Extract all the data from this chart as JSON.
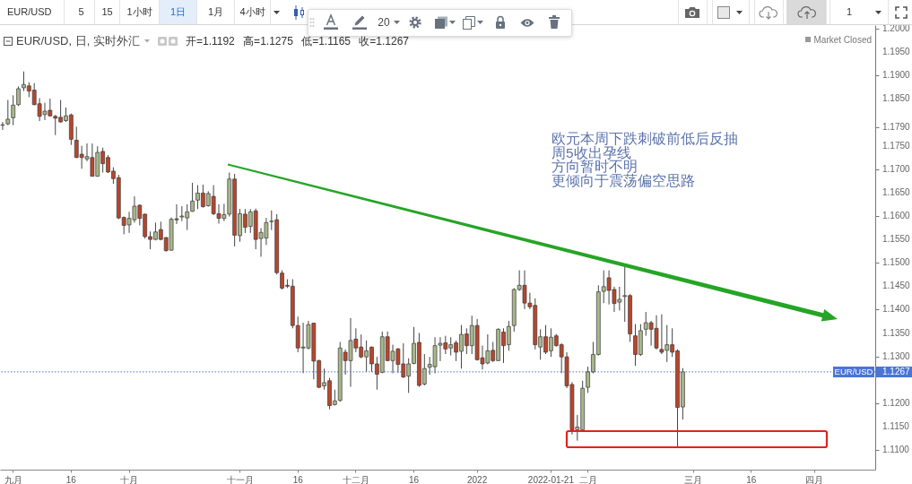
{
  "chart_data": {
    "type": "candlestick",
    "title": "EUR/USD, 日, 实时外汇",
    "subtitle": "开=1.1192 高=1.1275 低=1.1165 收=1.1267",
    "categories": [
      null,
      null,
      "九月",
      null,
      null,
      null,
      null,
      null,
      null,
      null,
      null,
      null,
      null,
      "16",
      null,
      null,
      null,
      null,
      null,
      null,
      null,
      null,
      null,
      null,
      "十月",
      null,
      null,
      null,
      null,
      null,
      null,
      null,
      null,
      null,
      null,
      null,
      null,
      null,
      null,
      null,
      null,
      null,
      null,
      null,
      null,
      "十一月",
      null,
      null,
      null,
      null,
      null,
      null,
      null,
      null,
      null,
      null,
      "16",
      null,
      null,
      null,
      null,
      null,
      null,
      null,
      null,
      null,
      null,
      "十二月",
      null,
      null,
      null,
      null,
      null,
      null,
      null,
      null,
      null,
      null,
      "16",
      null,
      null,
      null,
      null,
      null,
      null,
      null,
      null,
      null,
      null,
      null,
      "2022",
      null,
      null,
      null,
      null,
      null,
      null,
      null,
      null,
      null,
      null,
      null,
      null,
      null,
      "2022-01-21",
      null,
      null,
      null,
      null,
      null,
      null,
      "二月",
      null,
      null,
      null,
      null,
      null,
      null,
      null,
      null,
      null,
      null,
      null,
      null,
      null,
      null,
      null,
      null,
      null,
      null,
      null,
      "三月",
      null,
      null,
      null,
      null,
      null,
      null,
      null,
      null,
      null,
      null,
      "16",
      null,
      null,
      null,
      null,
      null,
      null,
      null,
      null,
      null,
      null,
      null,
      "四月",
      null,
      null,
      null,
      null,
      null,
      null,
      null,
      null,
      null,
      null,
      null
    ],
    "ohlc": [
      [
        1.1794,
        1.1801,
        1.1784,
        1.1795
      ],
      [
        1.1797,
        1.1848,
        1.1794,
        1.1807
      ],
      [
        1.181,
        1.1858,
        1.1794,
        1.1837
      ],
      [
        1.1838,
        1.1877,
        1.1835,
        1.1872
      ],
      [
        1.1874,
        1.1909,
        1.1867,
        1.1881
      ],
      [
        1.1878,
        1.1886,
        1.1854,
        1.1867
      ],
      [
        1.1869,
        1.1884,
        1.1837,
        1.1838
      ],
      [
        1.184,
        1.1852,
        1.1803,
        1.1813
      ],
      [
        1.1817,
        1.1842,
        1.1805,
        1.1824
      ],
      [
        1.1826,
        1.1851,
        1.1813,
        1.1814
      ],
      [
        1.1813,
        1.1816,
        1.1773,
        1.1809
      ],
      [
        1.1811,
        1.1848,
        1.18,
        1.1801
      ],
      [
        1.1804,
        1.1832,
        1.1801,
        1.1814
      ],
      [
        1.1816,
        1.1819,
        1.1752,
        1.1764
      ],
      [
        1.1762,
        1.1791,
        1.1724,
        1.1725
      ],
      [
        1.1732,
        1.175,
        1.1701,
        1.1725
      ],
      [
        1.1722,
        1.1755,
        1.1717,
        1.1727
      ],
      [
        1.1725,
        1.1755,
        1.1684,
        1.1685
      ],
      [
        1.1685,
        1.1749,
        1.1684,
        1.1736
      ],
      [
        1.1738,
        1.1746,
        1.1693,
        1.1712
      ],
      [
        1.1725,
        1.173,
        1.1692,
        1.1694
      ],
      [
        1.1696,
        1.1704,
        1.1669,
        1.168
      ],
      [
        1.1682,
        1.1688,
        1.1593,
        1.1596
      ],
      [
        1.1597,
        1.1599,
        1.1561,
        1.158
      ],
      [
        1.1581,
        1.1609,
        1.1564,
        1.1595
      ],
      [
        1.1592,
        1.1642,
        1.1586,
        1.1621
      ],
      [
        1.1623,
        1.1625,
        1.158,
        1.1595
      ],
      [
        1.1604,
        1.1605,
        1.1552,
        1.1556
      ],
      [
        1.1556,
        1.1567,
        1.1529,
        1.155
      ],
      [
        1.155,
        1.1586,
        1.1548,
        1.1566
      ],
      [
        1.1571,
        1.1588,
        1.1548,
        1.155
      ],
      [
        1.1554,
        1.1555,
        1.1524,
        1.1526
      ],
      [
        1.1527,
        1.1597,
        1.1526,
        1.1593
      ],
      [
        1.1594,
        1.1625,
        1.1583,
        1.1592
      ],
      [
        1.1598,
        1.1621,
        1.1589,
        1.16
      ],
      [
        1.1596,
        1.1625,
        1.157,
        1.1609
      ],
      [
        1.161,
        1.1671,
        1.1609,
        1.1632
      ],
      [
        1.1634,
        1.1666,
        1.1615,
        1.1649
      ],
      [
        1.1649,
        1.1667,
        1.1618,
        1.162
      ],
      [
        1.1622,
        1.1653,
        1.162,
        1.1648
      ],
      [
        1.1642,
        1.1666,
        1.1602,
        1.1605
      ],
      [
        1.1605,
        1.1625,
        1.1584,
        1.1595
      ],
      [
        1.1595,
        1.1626,
        1.1589,
        1.1603
      ],
      [
        1.1604,
        1.1693,
        1.1599,
        1.1679
      ],
      [
        1.1679,
        1.169,
        1.1535,
        1.1559
      ],
      [
        1.1558,
        1.1615,
        1.1545,
        1.1605
      ],
      [
        1.1604,
        1.1615,
        1.1564,
        1.1576
      ],
      [
        1.1578,
        1.1615,
        1.1564,
        1.1609
      ],
      [
        1.1611,
        1.1616,
        1.1529,
        1.155
      ],
      [
        1.1552,
        1.1574,
        1.1513,
        1.1565
      ],
      [
        1.1553,
        1.1596,
        1.1538,
        1.1586
      ],
      [
        1.1588,
        1.1612,
        1.157,
        1.1589
      ],
      [
        1.1592,
        1.1604,
        1.1475,
        1.1479
      ],
      [
        1.1478,
        1.1484,
        1.1443,
        1.1446
      ],
      [
        1.1452,
        1.1465,
        1.1446,
        1.145
      ],
      [
        1.145,
        1.1465,
        1.136,
        1.1366
      ],
      [
        1.1366,
        1.1385,
        1.1309,
        1.1318
      ],
      [
        1.1318,
        1.1372,
        1.1264,
        1.132
      ],
      [
        1.1318,
        1.1376,
        1.1315,
        1.1368
      ],
      [
        1.1371,
        1.1372,
        1.1251,
        1.129
      ],
      [
        1.1291,
        1.1293,
        1.1232,
        1.1234
      ],
      [
        1.1237,
        1.1274,
        1.1229,
        1.1244
      ],
      [
        1.1248,
        1.1254,
        1.1187,
        1.1195
      ],
      [
        1.1197,
        1.1229,
        1.1195,
        1.1205
      ],
      [
        1.1206,
        1.1331,
        1.1203,
        1.1318
      ],
      [
        1.1309,
        1.1315,
        1.1261,
        1.1291
      ],
      [
        1.1291,
        1.1382,
        1.1235,
        1.1334
      ],
      [
        1.1337,
        1.136,
        1.1309,
        1.1318
      ],
      [
        1.132,
        1.1347,
        1.1296,
        1.1299
      ],
      [
        1.1299,
        1.1334,
        1.1267,
        1.1312
      ],
      [
        1.132,
        1.1321,
        1.1267,
        1.1284
      ],
      [
        1.1284,
        1.1299,
        1.1229,
        1.1262
      ],
      [
        1.1266,
        1.1353,
        1.1264,
        1.1342
      ],
      [
        1.1342,
        1.1353,
        1.129,
        1.1291
      ],
      [
        1.1291,
        1.1325,
        1.1264,
        1.1311
      ],
      [
        1.1316,
        1.1318,
        1.1265,
        1.1283
      ],
      [
        1.1284,
        1.1328,
        1.1254,
        1.1256
      ],
      [
        1.1258,
        1.1296,
        1.1222,
        1.1284
      ],
      [
        1.1285,
        1.1363,
        1.1283,
        1.1328
      ],
      [
        1.133,
        1.135,
        1.1235,
        1.1238
      ],
      [
        1.1241,
        1.1305,
        1.1238,
        1.1274
      ],
      [
        1.1277,
        1.1299,
        1.1261,
        1.1283
      ],
      [
        1.1278,
        1.1341,
        1.1264,
        1.1323
      ],
      [
        1.1324,
        1.1341,
        1.129,
        1.1328
      ],
      [
        1.1329,
        1.1344,
        1.1305,
        1.1316
      ],
      [
        1.1318,
        1.1341,
        1.1302,
        1.1325
      ],
      [
        1.1329,
        1.1334,
        1.129,
        1.1309
      ],
      [
        1.1311,
        1.1367,
        1.1274,
        1.1347
      ],
      [
        1.1348,
        1.136,
        1.1305,
        1.1323
      ],
      [
        1.1323,
        1.1387,
        1.1305,
        1.1366
      ],
      [
        1.1366,
        1.138,
        1.1291,
        1.1293
      ],
      [
        1.1297,
        1.1323,
        1.1272,
        1.1284
      ],
      [
        1.1286,
        1.1347,
        1.1283,
        1.1312
      ],
      [
        1.1313,
        1.1331,
        1.1288,
        1.1291
      ],
      [
        1.1291,
        1.136,
        1.129,
        1.1358
      ],
      [
        1.1352,
        1.136,
        1.1286,
        1.1323
      ],
      [
        1.1325,
        1.1376,
        1.1312,
        1.1364
      ],
      [
        1.1366,
        1.1446,
        1.1353,
        1.1443
      ],
      [
        1.1443,
        1.1484,
        1.144,
        1.1452
      ],
      [
        1.1452,
        1.1484,
        1.1401,
        1.1414
      ],
      [
        1.1414,
        1.1436,
        1.1401,
        1.1406
      ],
      [
        1.1409,
        1.1424,
        1.1315,
        1.1325
      ],
      [
        1.132,
        1.1358,
        1.1293,
        1.1342
      ],
      [
        1.1342,
        1.1367,
        1.1305,
        1.1309
      ],
      [
        1.1312,
        1.136,
        1.1299,
        1.1341
      ],
      [
        1.1344,
        1.1348,
        1.1321,
        1.1323
      ],
      [
        1.1325,
        1.1328,
        1.1264,
        1.1299
      ],
      [
        1.1299,
        1.1309,
        1.1232,
        1.1237
      ],
      [
        1.124,
        1.1245,
        1.1133,
        1.1143
      ],
      [
        1.1143,
        1.1175,
        1.112,
        1.1149
      ],
      [
        1.1143,
        1.1248,
        1.114,
        1.1232
      ],
      [
        1.1234,
        1.1278,
        1.1222,
        1.1267
      ],
      [
        1.1267,
        1.1331,
        1.1264,
        1.1304
      ],
      [
        1.1304,
        1.1452,
        1.1302,
        1.1438
      ],
      [
        1.1439,
        1.1484,
        1.1414,
        1.1449
      ],
      [
        1.1468,
        1.1484,
        1.1411,
        1.1441
      ],
      [
        1.1443,
        1.1449,
        1.1395,
        1.1413
      ],
      [
        1.1416,
        1.1449,
        1.1398,
        1.1422
      ],
      [
        1.1428,
        1.1491,
        1.1374,
        1.143
      ],
      [
        1.143,
        1.1433,
        1.1331,
        1.1348
      ],
      [
        1.1344,
        1.1369,
        1.128,
        1.1304
      ],
      [
        1.1304,
        1.1369,
        1.1301,
        1.1355
      ],
      [
        1.1358,
        1.1395,
        1.1344,
        1.1372
      ],
      [
        1.1372,
        1.1376,
        1.1323,
        1.1358
      ],
      [
        1.136,
        1.1388,
        1.1315,
        1.1318
      ],
      [
        1.1315,
        1.139,
        1.1305,
        1.1309
      ],
      [
        1.1313,
        1.1367,
        1.1288,
        1.1325
      ],
      [
        1.1325,
        1.136,
        1.1299,
        1.1309
      ],
      [
        1.1312,
        1.1315,
        1.1107,
        1.1191
      ],
      [
        1.1192,
        1.1275,
        1.1165,
        1.1267
      ],
      null,
      null,
      null,
      null,
      null,
      null,
      null,
      null,
      null,
      null,
      null,
      null,
      null,
      null,
      null,
      null,
      null,
      null,
      null,
      null,
      null,
      null,
      null,
      null,
      null,
      null,
      null,
      null,
      null,
      null,
      null,
      null,
      null,
      null,
      null,
      null
    ],
    "colors": [
      "#a9b78c",
      "#a9b78c",
      "#a9b78c",
      "#a9b78c",
      "#a9b78c",
      "#b8462c",
      "#b8462c",
      "#b8462c",
      "#a9b78c",
      "#b8462c",
      "#b8462c",
      "#b8462c",
      "#a9b78c",
      "#b8462c",
      "#b8462c",
      "#b8462c",
      "#a9b78c",
      "#b8462c",
      "#a9b78c",
      "#b8462c",
      "#b8462c",
      "#b8462c",
      "#b8462c",
      "#b8462c",
      "#a9b78c",
      "#a9b78c",
      "#b8462c",
      "#b8462c",
      "#b8462c",
      "#a9b78c",
      "#b8462c",
      "#b8462c",
      "#a9b78c",
      "#b8462c",
      "#a9b78c",
      "#a9b78c",
      "#a9b78c",
      "#a9b78c",
      "#b8462c",
      "#a9b78c",
      "#b8462c",
      "#b8462c",
      "#a9b78c",
      "#a9b78c",
      "#b8462c",
      "#a9b78c",
      "#b8462c",
      "#a9b78c",
      "#b8462c",
      "#a9b78c",
      "#a9b78c",
      "#a9b78c",
      "#b8462c",
      "#b8462c",
      "#b8462c",
      "#b8462c",
      "#b8462c",
      "#a9b78c",
      "#a9b78c",
      "#b8462c",
      "#b8462c",
      "#a9b78c",
      "#b8462c",
      "#a9b78c",
      "#a9b78c",
      "#b8462c",
      "#a9b78c",
      "#b8462c",
      "#b8462c",
      "#a9b78c",
      "#b8462c",
      "#b8462c",
      "#a9b78c",
      "#b8462c",
      "#a9b78c",
      "#b8462c",
      "#b8462c",
      "#a9b78c",
      "#a9b78c",
      "#b8462c",
      "#a9b78c",
      "#a9b78c",
      "#a9b78c",
      "#a9b78c",
      "#b8462c",
      "#a9b78c",
      "#b8462c",
      "#a9b78c",
      "#b8462c",
      "#a9b78c",
      "#b8462c",
      "#b8462c",
      "#a9b78c",
      "#b8462c",
      "#a9b78c",
      "#b8462c",
      "#a9b78c",
      "#a9b78c",
      "#a9b78c",
      "#b8462c",
      "#b8462c",
      "#b8462c",
      "#a9b78c",
      "#b8462c",
      "#a9b78c",
      "#b8462c",
      "#b8462c",
      "#b8462c",
      "#b8462c",
      "#a9b78c",
      "#a9b78c",
      "#a9b78c",
      "#a9b78c",
      "#a9b78c",
      "#a9b78c",
      "#b8462c",
      "#b8462c",
      "#a9b78c",
      "#a9b78c",
      "#b8462c",
      "#b8462c",
      "#a9b78c",
      "#a9b78c",
      "#b8462c",
      "#b8462c",
      "#b8462c",
      "#a9b78c",
      "#b8462c",
      "#b8462c",
      "#a9b78c",
      null,
      null,
      null,
      null,
      null,
      null,
      null,
      null,
      null,
      null,
      null,
      null,
      null,
      null,
      null,
      null,
      null,
      null,
      null,
      null,
      null,
      null,
      null,
      null,
      null,
      null,
      null,
      null,
      null,
      null,
      null,
      null,
      null,
      null,
      null,
      null
    ],
    "ylim": [
      1.1058,
      1.2008
    ],
    "yticks": [
      {
        "value": 1.2,
        "label": "1.2000"
      },
      {
        "value": 1.195,
        "label": "1.1950"
      },
      {
        "value": 1.19,
        "label": "1.1900"
      },
      {
        "value": 1.185,
        "label": "1.1850"
      },
      {
        "value": 1.179,
        "label": "1.1790"
      },
      {
        "value": 1.175,
        "label": "1.1750"
      },
      {
        "value": 1.17,
        "label": "1.1700"
      },
      {
        "value": 1.165,
        "label": "1.1650"
      },
      {
        "value": 1.16,
        "label": "1.1600"
      },
      {
        "value": 1.155,
        "label": "1.1550"
      },
      {
        "value": 1.15,
        "label": "1.1500"
      },
      {
        "value": 1.145,
        "label": "1.1450"
      },
      {
        "value": 1.14,
        "label": "1.1400"
      },
      {
        "value": 1.135,
        "label": "1.1350"
      },
      {
        "value": 1.13,
        "label": "1.1300"
      },
      {
        "value": 1.1267,
        "label": "1.1267"
      },
      {
        "value": 1.12,
        "label": "1.1200"
      },
      {
        "value": 1.115,
        "label": "1.1150"
      },
      {
        "value": 1.11,
        "label": "1.1100"
      }
    ],
    "ref_lines": [
      {
        "axis": "y",
        "value": 1.1267,
        "label": "EUR/USD",
        "color": "#4a74d6",
        "line_style": "dotted"
      }
    ],
    "annotations": [
      "EUR/USD",
      "5",
      "15",
      "1小时",
      "1日",
      "1月",
      "4小时",
      "20",
      "1",
      "Market Closed",
      "欧元本周下跌刺破前低后反抽",
      "周5收出孕线",
      "方向暂时不明",
      "更倾向于震荡偏空思路"
    ]
  }
}
